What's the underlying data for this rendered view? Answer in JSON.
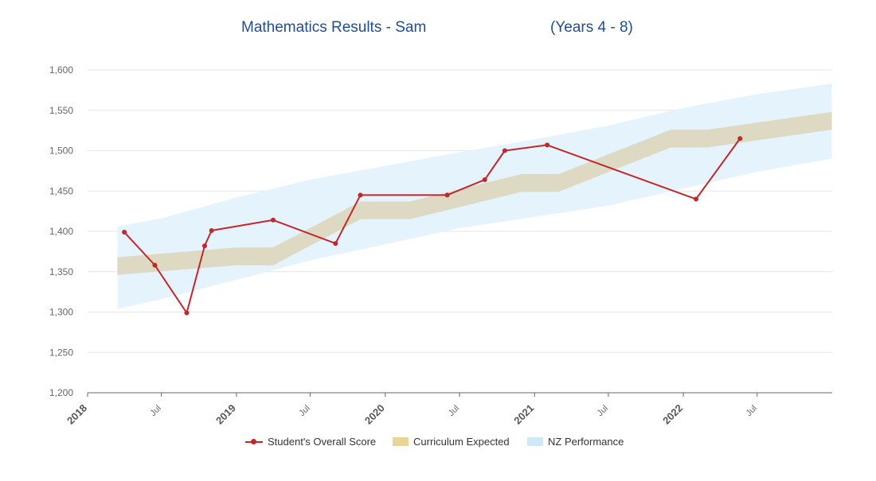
{
  "header": {
    "title": "Mathematics Results - Sam",
    "years": "(Years 4 - 8)"
  },
  "legend": {
    "score_label": "Student's Overall Score",
    "curriculum_label": "Curriculum Expected",
    "nz_label": "NZ Performance"
  },
  "colors": {
    "score": "#c0282d",
    "curriculum": "#ded9c2",
    "curriculum_legend": "#ecd39a",
    "nz": "#e4f3fc",
    "nz_legend": "#cfe9fa",
    "title": "#1f4e96",
    "grid": "#e6e6e6"
  },
  "chart_data": {
    "type": "line",
    "title": "Mathematics Results - Sam (Years 4 - 8)",
    "xlabel": "",
    "ylabel": "",
    "ylim": [
      1200,
      1600
    ],
    "xlim": [
      "2018-01-01",
      "2023-01-01"
    ],
    "y_ticks": [
      1200,
      1250,
      1300,
      1350,
      1400,
      1450,
      1500,
      1550,
      1600
    ],
    "y_tick_labels": [
      "1,200",
      "1,250",
      "1,300",
      "1,350",
      "1,400",
      "1,450",
      "1,500",
      "1,550",
      "1,600"
    ],
    "x_ticks": [
      {
        "date": "2018-01-01",
        "label": "2018",
        "major": true
      },
      {
        "date": "2018-07-01",
        "label": "Jul",
        "major": false
      },
      {
        "date": "2019-01-01",
        "label": "2019",
        "major": true
      },
      {
        "date": "2019-07-01",
        "label": "Jul",
        "major": false
      },
      {
        "date": "2020-01-01",
        "label": "2020",
        "major": true
      },
      {
        "date": "2020-07-01",
        "label": "Jul",
        "major": false
      },
      {
        "date": "2021-01-01",
        "label": "2021",
        "major": true
      },
      {
        "date": "2021-07-01",
        "label": "Jul",
        "major": false
      },
      {
        "date": "2022-01-01",
        "label": "2022",
        "major": true
      },
      {
        "date": "2022-07-01",
        "label": "Jul",
        "major": false
      }
    ],
    "grid": true,
    "legend_position": "bottom-center",
    "series": [
      {
        "name": "Student's Overall Score",
        "kind": "line",
        "points": [
          {
            "x": "2018-04-01",
            "y": 1399
          },
          {
            "x": "2018-06-15",
            "y": 1358
          },
          {
            "x": "2018-09-01",
            "y": 1299
          },
          {
            "x": "2018-10-15",
            "y": 1382
          },
          {
            "x": "2018-11-01",
            "y": 1401
          },
          {
            "x": "2019-04-01",
            "y": 1414
          },
          {
            "x": "2019-09-01",
            "y": 1385
          },
          {
            "x": "2019-11-01",
            "y": 1445
          },
          {
            "x": "2020-06-01",
            "y": 1445
          },
          {
            "x": "2020-09-01",
            "y": 1464
          },
          {
            "x": "2020-10-20",
            "y": 1500
          },
          {
            "x": "2021-02-01",
            "y": 1507
          },
          {
            "x": "2022-02-01",
            "y": 1440
          },
          {
            "x": "2022-05-20",
            "y": 1515
          }
        ]
      },
      {
        "name": "Curriculum Expected",
        "kind": "band",
        "points": [
          {
            "x": "2018-03-15",
            "low": 1346,
            "high": 1368
          },
          {
            "x": "2019-01-01",
            "low": 1358,
            "high": 1380
          },
          {
            "x": "2019-04-01",
            "low": 1358,
            "high": 1380
          },
          {
            "x": "2019-11-01",
            "low": 1415,
            "high": 1437
          },
          {
            "x": "2020-03-01",
            "low": 1415,
            "high": 1437
          },
          {
            "x": "2020-12-01",
            "low": 1449,
            "high": 1471
          },
          {
            "x": "2021-03-01",
            "low": 1449,
            "high": 1471
          },
          {
            "x": "2021-12-01",
            "low": 1504,
            "high": 1526
          },
          {
            "x": "2022-03-01",
            "low": 1504,
            "high": 1526
          },
          {
            "x": "2022-12-31",
            "low": 1526,
            "high": 1548
          }
        ]
      },
      {
        "name": "NZ Performance",
        "kind": "band",
        "points": [
          {
            "x": "2018-03-15",
            "low": 1304,
            "high": 1406
          },
          {
            "x": "2018-07-01",
            "low": 1316,
            "high": 1416
          },
          {
            "x": "2019-01-01",
            "low": 1340,
            "high": 1442
          },
          {
            "x": "2019-07-01",
            "low": 1364,
            "high": 1464
          },
          {
            "x": "2020-01-01",
            "low": 1384,
            "high": 1481
          },
          {
            "x": "2020-07-01",
            "low": 1404,
            "high": 1498
          },
          {
            "x": "2021-01-01",
            "low": 1418,
            "high": 1514
          },
          {
            "x": "2021-07-01",
            "low": 1432,
            "high": 1531
          },
          {
            "x": "2022-01-01",
            "low": 1453,
            "high": 1553
          },
          {
            "x": "2022-07-01",
            "low": 1474,
            "high": 1570
          },
          {
            "x": "2022-12-31",
            "low": 1490,
            "high": 1583
          }
        ]
      }
    ]
  }
}
